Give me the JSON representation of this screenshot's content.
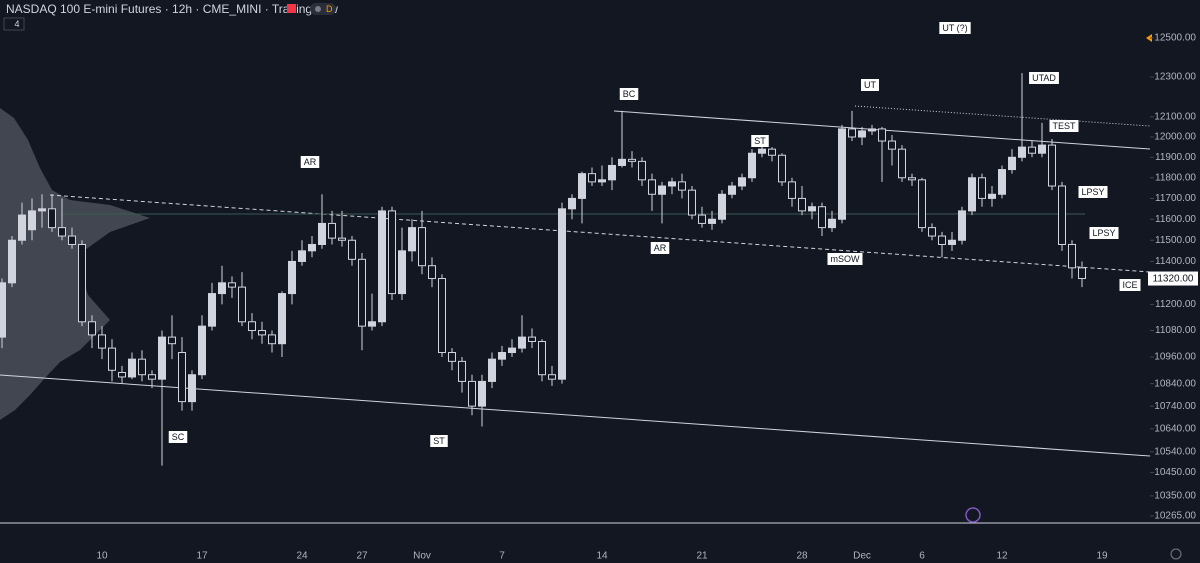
{
  "header": {
    "title": "NASDAQ 100 E-mini Futures · 12h · CME_MINI · TradingView",
    "indicators": "4",
    "badge": "D"
  },
  "chart_data": {
    "type": "candlestick",
    "log_scale": true,
    "categories": [
      null,
      null,
      null,
      null,
      null,
      null,
      null,
      null,
      null,
      null,
      "10",
      null,
      null,
      null,
      null,
      null,
      null,
      null,
      null,
      null,
      "17",
      null,
      null,
      null,
      null,
      null,
      null,
      null,
      null,
      null,
      "24",
      null,
      null,
      null,
      null,
      null,
      "27",
      null,
      null,
      null,
      null,
      null,
      "Nov",
      null,
      null,
      null,
      null,
      null,
      null,
      null,
      "7",
      null,
      null,
      null,
      null,
      null,
      null,
      null,
      null,
      null,
      "14",
      null,
      null,
      null,
      null,
      null,
      null,
      null,
      null,
      null,
      "21",
      null,
      null,
      null,
      null,
      null,
      null,
      null,
      null,
      null,
      "28",
      null,
      null,
      null,
      null,
      null,
      "Dec",
      null,
      null,
      null,
      null,
      null,
      "6",
      null,
      null,
      null,
      null,
      null,
      null,
      null,
      "12",
      null,
      null,
      null,
      null,
      null,
      null,
      null,
      null,
      null,
      "19"
    ],
    "open": [
      11050,
      11300,
      11500,
      11550,
      11640,
      11650,
      11560,
      11520,
      11480,
      11120,
      11060,
      11000,
      10890,
      10870,
      10950,
      10880,
      10860,
      11050,
      10980,
      10760,
      10880,
      11100,
      11250,
      11300,
      11280,
      11120,
      11080,
      11060,
      11020,
      11250,
      11400,
      11450,
      11480,
      11580,
      11510,
      11500,
      11410,
      11100,
      11120,
      11640,
      11250,
      11450,
      11560,
      11380,
      11320,
      10980,
      10940,
      10850,
      10740,
      10850,
      10950,
      10980,
      11000,
      11050,
      11030,
      10880,
      10860,
      11650,
      11700,
      11820,
      11780,
      11790,
      11860,
      11890,
      11880,
      11790,
      11720,
      11760,
      11780,
      11740,
      11620,
      11580,
      11600,
      11720,
      11760,
      11800,
      11920,
      11940,
      11910,
      11780,
      11700,
      11640,
      11660,
      11560,
      11600,
      12040,
      12000,
      12030,
      12040,
      11980,
      11940,
      11800,
      11790,
      11560,
      11520,
      11480,
      11500,
      11640,
      11800,
      11700,
      11720,
      11840,
      11900,
      11950,
      11920,
      11960,
      11760,
      11480,
      11370,
      null,
      null
    ],
    "high": [
      11320,
      11520,
      11680,
      11700,
      11720,
      11720,
      11700,
      11560,
      11500,
      11150,
      11100,
      11040,
      10920,
      10980,
      10990,
      10900,
      11080,
      11150,
      11050,
      10900,
      11150,
      11300,
      11380,
      11330,
      11350,
      11160,
      11120,
      11080,
      11260,
      11450,
      11500,
      11520,
      11720,
      11640,
      11640,
      11520,
      11440,
      11250,
      11660,
      11660,
      11560,
      11600,
      11640,
      11420,
      11340,
      11000,
      10960,
      10880,
      10880,
      10980,
      11010,
      11040,
      11150,
      11090,
      11040,
      10920,
      11680,
      11720,
      11830,
      11850,
      11860,
      11900,
      12130,
      11930,
      11900,
      11820,
      11780,
      11800,
      11820,
      11760,
      11660,
      11640,
      11740,
      11780,
      11820,
      11940,
      11960,
      11950,
      11920,
      11800,
      11760,
      11680,
      11680,
      11640,
      12060,
      12130,
      12050,
      12060,
      12050,
      12010,
      11960,
      11820,
      11800,
      11580,
      11540,
      11540,
      11660,
      11820,
      11820,
      11760,
      11860,
      11940,
      12320,
      11980,
      12070,
      11990,
      11780,
      11500,
      11400,
      null,
      null
    ],
    "low": [
      11000,
      11280,
      11480,
      11500,
      11560,
      11540,
      11500,
      11460,
      11100,
      11000,
      10950,
      10850,
      10840,
      10860,
      10850,
      10820,
      10480,
      10950,
      10720,
      10720,
      10860,
      11080,
      11200,
      11230,
      11100,
      11040,
      11020,
      10980,
      10960,
      11200,
      11380,
      11420,
      11460,
      11480,
      11470,
      11380,
      10990,
      11080,
      11100,
      11220,
      11220,
      11400,
      11340,
      11280,
      10960,
      10900,
      10800,
      10700,
      10650,
      10820,
      10920,
      10960,
      10980,
      11000,
      10850,
      10830,
      10840,
      11600,
      11580,
      11760,
      11760,
      11740,
      11850,
      11850,
      11760,
      11640,
      11580,
      11720,
      11700,
      11600,
      11560,
      11550,
      11580,
      11700,
      11740,
      11780,
      11900,
      11880,
      11760,
      11660,
      11620,
      11600,
      11520,
      11540,
      11580,
      11980,
      11960,
      12010,
      11780,
      11860,
      11780,
      11760,
      11540,
      11500,
      11420,
      11450,
      11480,
      11620,
      11660,
      11660,
      11700,
      11820,
      11880,
      11900,
      11900,
      11740,
      11450,
      11320,
      11280,
      null,
      null
    ],
    "close": [
      11300,
      11500,
      11620,
      11640,
      11650,
      11560,
      11520,
      11480,
      11120,
      11060,
      11000,
      10900,
      10870,
      10950,
      10880,
      10860,
      11050,
      11020,
      10760,
      10880,
      11100,
      11250,
      11300,
      11280,
      11120,
      11080,
      11060,
      11020,
      11250,
      11400,
      11450,
      11480,
      11580,
      11510,
      11500,
      11410,
      11100,
      11120,
      11640,
      11250,
      11450,
      11560,
      11380,
      11320,
      10980,
      10940,
      10850,
      10740,
      10850,
      10950,
      10980,
      11000,
      11050,
      11030,
      10880,
      10860,
      11650,
      11700,
      11820,
      11780,
      11790,
      11860,
      11890,
      11880,
      11790,
      11720,
      11760,
      11780,
      11740,
      11620,
      11580,
      11600,
      11720,
      11760,
      11800,
      11920,
      11940,
      11910,
      11780,
      11700,
      11640,
      11660,
      11560,
      11600,
      12040,
      12000,
      12030,
      12040,
      11980,
      11940,
      11800,
      11790,
      11560,
      11520,
      11480,
      11500,
      11640,
      11800,
      11700,
      11720,
      11840,
      11900,
      11950,
      11920,
      11960,
      11760,
      11480,
      11370,
      11320,
      null,
      null
    ],
    "up_color": "#d1d4dc",
    "down_color": "#131722",
    "ylim": [
      10235,
      12697
    ],
    "yticks": [
      {
        "value": 12500,
        "label": "12500.00"
      },
      {
        "value": 12300,
        "label": "12300.00"
      },
      {
        "value": 12100,
        "label": "12100.00"
      },
      {
        "value": 12000,
        "label": "12000.00"
      },
      {
        "value": 11900,
        "label": "11900.00"
      },
      {
        "value": 11800,
        "label": "11800.00"
      },
      {
        "value": 11700,
        "label": "11700.00"
      },
      {
        "value": 11600,
        "label": "11600.00"
      },
      {
        "value": 11500,
        "label": "11500.00"
      },
      {
        "value": 11400,
        "label": "11400.00"
      },
      {
        "value": 11200,
        "label": "11200.00"
      },
      {
        "value": 11080,
        "label": "11080.00"
      },
      {
        "value": 10960,
        "label": "10960.00"
      },
      {
        "value": 10840,
        "label": "10840.00"
      },
      {
        "value": 10740,
        "label": "10740.00"
      },
      {
        "value": 10640,
        "label": "10640.00"
      },
      {
        "value": 10540,
        "label": "10540.00"
      },
      {
        "value": 10450,
        "label": "10450.00"
      },
      {
        "value": 10350,
        "label": "10350.00"
      },
      {
        "value": 10265,
        "label": "10265.00"
      }
    ],
    "price_label": {
      "value": 11320,
      "label": "11320.00"
    },
    "annotations": [
      "BC",
      "AR",
      "ST",
      "UT",
      "UT (?)",
      "UTAD",
      "TEST",
      "LPSY",
      "LPSY",
      "ICE",
      "mSOW",
      "AR",
      "SC",
      "ST"
    ]
  }
}
